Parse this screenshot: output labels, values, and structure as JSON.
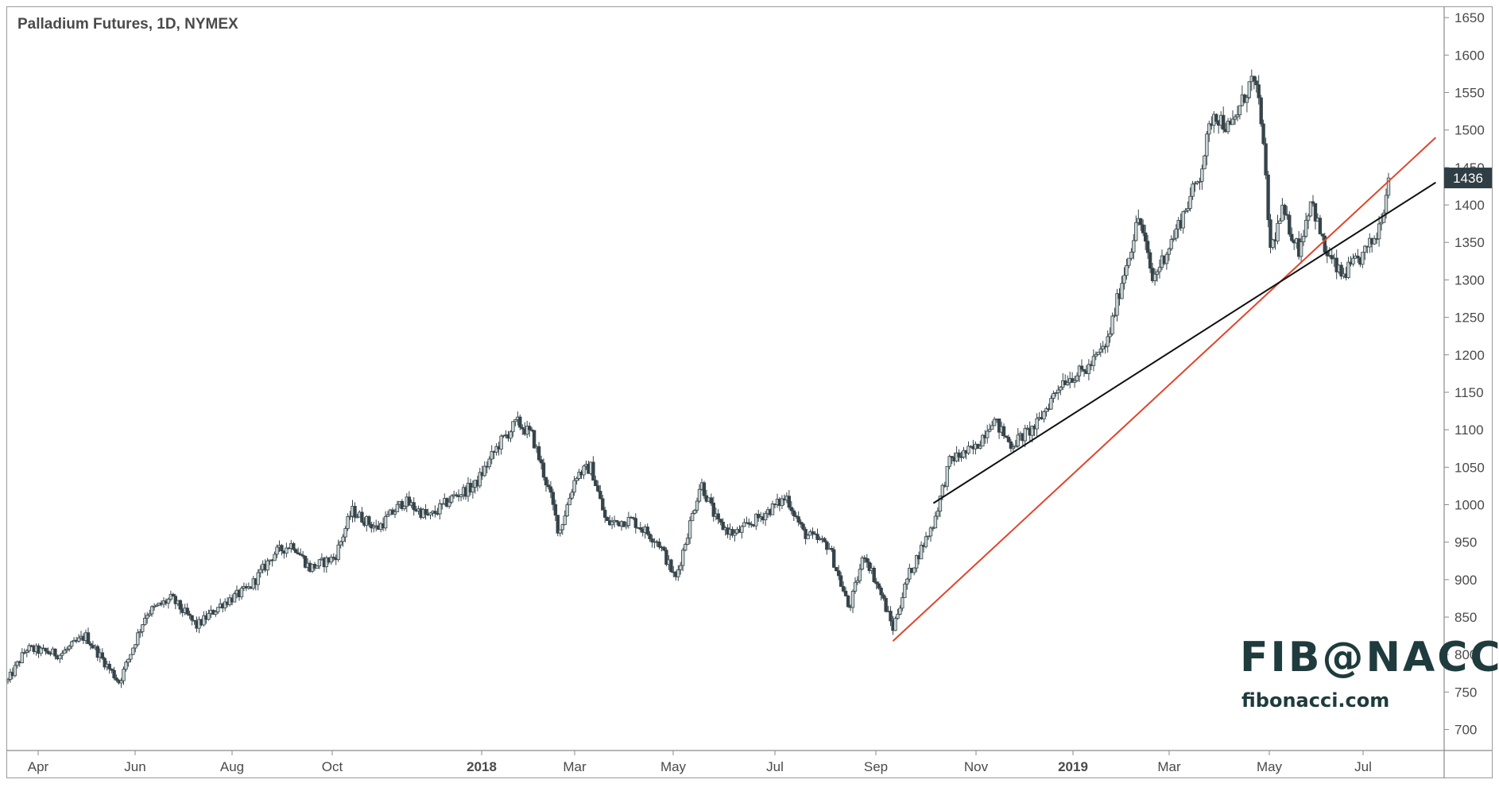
{
  "chart_data": {
    "type": "candlestick",
    "title": "Palladium Futures, 1D, NYMEX",
    "x_ticks": [
      "Apr",
      "Jun",
      "Aug",
      "Oct",
      "2018",
      "Mar",
      "May",
      "Jul",
      "Sep",
      "Nov",
      "2019",
      "Mar",
      "May",
      "Jul"
    ],
    "y_ticks": [
      700,
      750,
      800,
      850,
      900,
      950,
      1000,
      1050,
      1100,
      1150,
      1200,
      1250,
      1300,
      1350,
      1400,
      1450,
      1500,
      1550,
      1600,
      1650
    ],
    "ylim": [
      672,
      1665
    ],
    "last_price": 1436,
    "last_price_label": "1436",
    "price_path": [
      [
        "2017-03-20",
        765
      ],
      [
        "2017-03-31",
        808
      ],
      [
        "2017-04-20",
        800
      ],
      [
        "2017-05-05",
        825
      ],
      [
        "2017-05-25",
        763
      ],
      [
        "2017-06-10",
        855
      ],
      [
        "2017-06-25",
        875
      ],
      [
        "2017-07-10",
        838
      ],
      [
        "2017-07-25",
        868
      ],
      [
        "2017-08-10",
        888
      ],
      [
        "2017-08-25",
        935
      ],
      [
        "2017-09-05",
        948
      ],
      [
        "2017-09-15",
        915
      ],
      [
        "2017-09-30",
        930
      ],
      [
        "2017-10-10",
        992
      ],
      [
        "2017-10-25",
        968
      ],
      [
        "2017-11-10",
        1005
      ],
      [
        "2017-11-25",
        983
      ],
      [
        "2017-12-10",
        1012
      ],
      [
        "2017-12-22",
        1025
      ],
      [
        "2018-01-05",
        1080
      ],
      [
        "2018-01-16",
        1110
      ],
      [
        "2018-01-25",
        1092
      ],
      [
        "2018-02-05",
        1010
      ],
      [
        "2018-02-10",
        962
      ],
      [
        "2018-02-20",
        1040
      ],
      [
        "2018-03-01",
        1050
      ],
      [
        "2018-03-10",
        975
      ],
      [
        "2018-03-25",
        980
      ],
      [
        "2018-04-10",
        950
      ],
      [
        "2018-04-20",
        900
      ],
      [
        "2018-05-05",
        1030
      ],
      [
        "2018-05-15",
        975
      ],
      [
        "2018-05-25",
        960
      ],
      [
        "2018-06-10",
        985
      ],
      [
        "2018-06-25",
        1010
      ],
      [
        "2018-07-05",
        962
      ],
      [
        "2018-07-20",
        945
      ],
      [
        "2018-08-01",
        860
      ],
      [
        "2018-08-10",
        935
      ],
      [
        "2018-08-20",
        880
      ],
      [
        "2018-08-27",
        835
      ],
      [
        "2018-09-05",
        905
      ],
      [
        "2018-09-20",
        975
      ],
      [
        "2018-09-30",
        1060
      ],
      [
        "2018-10-15",
        1075
      ],
      [
        "2018-10-25",
        1115
      ],
      [
        "2018-11-05",
        1080
      ],
      [
        "2018-11-20",
        1105
      ],
      [
        "2018-12-05",
        1165
      ],
      [
        "2018-12-20",
        1180
      ],
      [
        "2019-01-01",
        1215
      ],
      [
        "2019-01-10",
        1300
      ],
      [
        "2019-01-20",
        1385
      ],
      [
        "2019-01-28",
        1300
      ],
      [
        "2019-02-10",
        1360
      ],
      [
        "2019-02-25",
        1440
      ],
      [
        "2019-03-05",
        1525
      ],
      [
        "2019-03-15",
        1500
      ],
      [
        "2019-03-28",
        1568
      ],
      [
        "2019-04-02",
        1530
      ],
      [
        "2019-04-08",
        1340
      ],
      [
        "2019-04-15",
        1390
      ],
      [
        "2019-04-25",
        1340
      ],
      [
        "2019-05-02",
        1410
      ],
      [
        "2019-05-10",
        1340
      ],
      [
        "2019-05-20",
        1305
      ],
      [
        "2019-06-01",
        1330
      ],
      [
        "2019-06-10",
        1360
      ],
      [
        "2019-06-18",
        1436
      ]
    ],
    "trendlines": [
      {
        "color": "#e0452b",
        "from": [
          "2018-08-27",
          818
        ],
        "to": [
          "2019-07-15",
          1490
        ]
      },
      {
        "color": "#111111",
        "from": [
          "2018-09-20",
          1002
        ],
        "to": [
          "2019-07-15",
          1430
        ]
      }
    ]
  },
  "brand": {
    "name": "FIB@NACCI",
    "tm": "™",
    "url": "fibonacci.com"
  },
  "colors": {
    "candle": "#36444a",
    "grid": "#ffffff",
    "axis": "#6b6b6b",
    "red_line": "#e0452b",
    "black_line": "#111111",
    "price_tag": "#2f3e44"
  }
}
